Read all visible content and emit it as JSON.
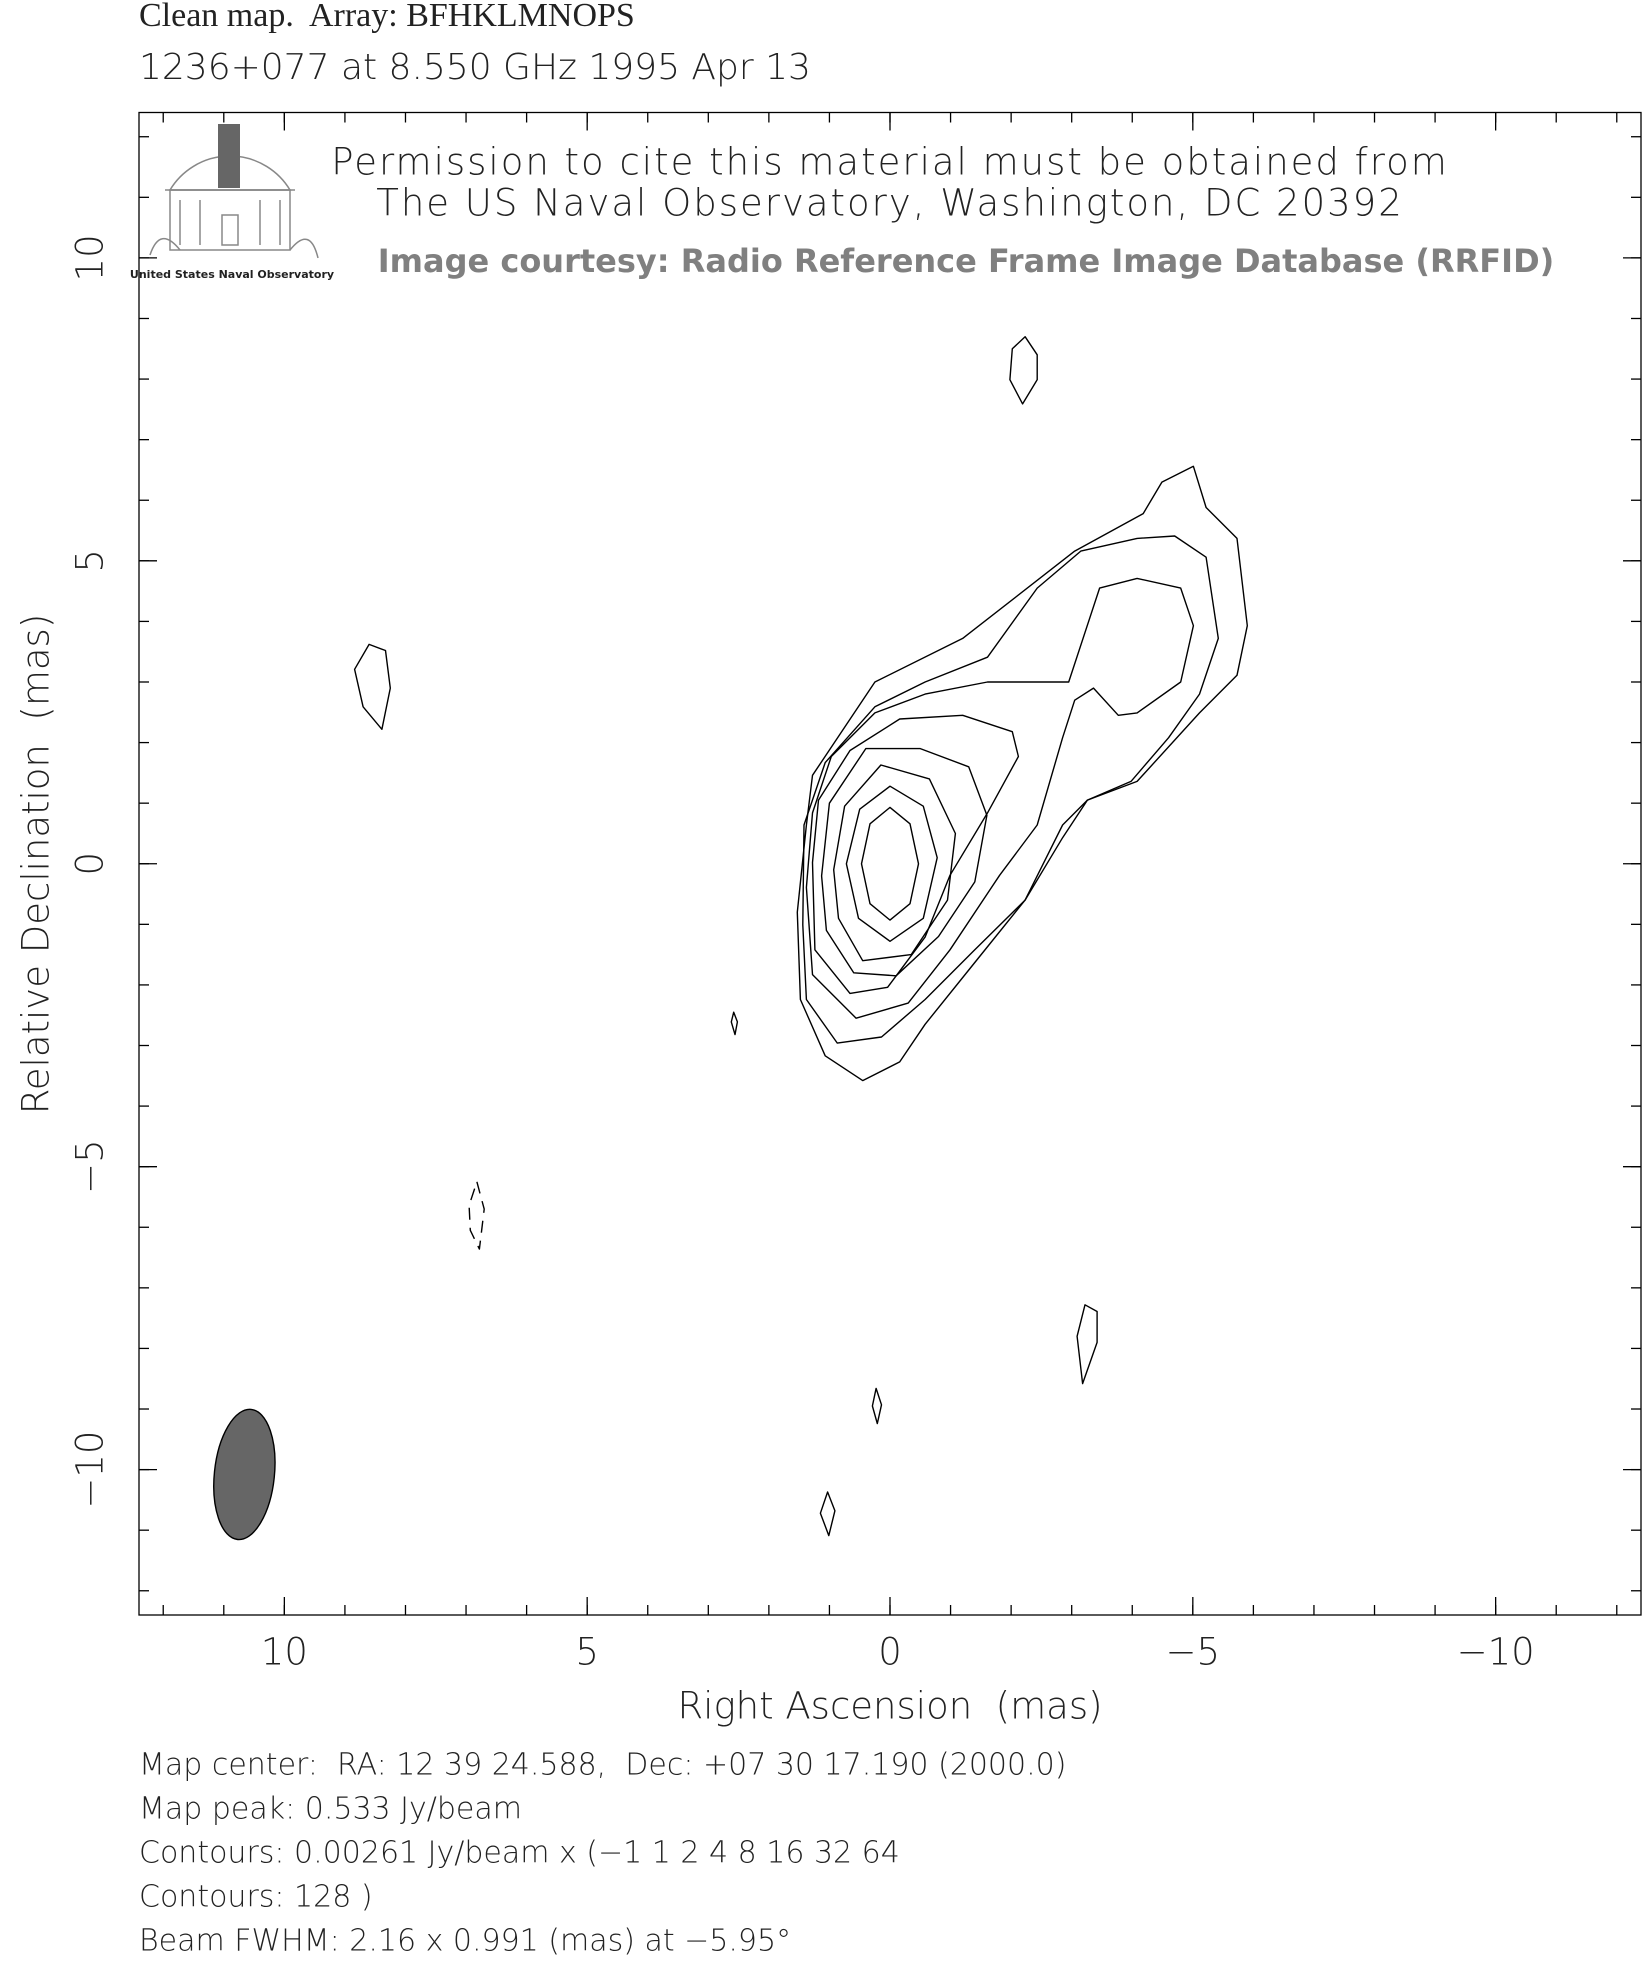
{
  "chart_data": {
    "type": "contour",
    "title": "Clean map.  Array: BFHKLMNOPS",
    "subtitle": "1236+077 at 8.550 GHz 1995 Apr 13",
    "watermark": [
      "Permission to cite this material must be obtained from",
      "The US Naval Observatory, Washington, DC 20392"
    ],
    "courtesy": "Image courtesy: Radio Reference Frame Image Database (RRFID)",
    "logo_caption": "United States Naval Observatory",
    "x_label": "Right Ascension  (mas)",
    "y_label": "Relative Declination  (mas)",
    "xlim": [
      12.4,
      -12.4
    ],
    "ylim": [
      -12.4,
      12.4
    ],
    "xticks": [
      10,
      5,
      0,
      {
        "value": -5,
        "label": "−5"
      },
      {
        "value": -10,
        "label": "−10"
      }
    ],
    "yticks": [
      {
        "value": -10,
        "label": "−10"
      },
      {
        "value": -5,
        "label": "−5"
      },
      0,
      5,
      10
    ],
    "xminor": [
      -12,
      -11,
      -10,
      -9,
      -8,
      -7,
      -6,
      -5,
      -4,
      -3,
      -2,
      -1,
      0,
      1,
      2,
      3,
      4,
      5,
      6,
      7,
      8,
      9,
      10,
      11,
      12
    ],
    "yminor": [
      -12,
      -11,
      -10,
      -9,
      -8,
      -7,
      -6,
      -5,
      -4,
      -3,
      -2,
      -1,
      0,
      1,
      2,
      3,
      4,
      5,
      6,
      7,
      8,
      9,
      10,
      11,
      12
    ],
    "color": "#000000",
    "contours": [
      {
        "level": 128,
        "x": [
          0.47,
          0.33,
          0,
          -0.33,
          -0.47,
          -0.33,
          0,
          0.33
        ],
        "y": [
          0,
          0.66,
          0.93,
          0.66,
          0,
          -0.66,
          -0.93,
          -0.66
        ]
      },
      {
        "level": 64,
        "x": [
          0.72,
          0.5,
          0,
          -0.55,
          -0.78,
          -0.55,
          0,
          0.52
        ],
        "y": [
          0,
          0.9,
          1.28,
          0.95,
          0.1,
          -0.9,
          -1.28,
          -0.9
        ]
      },
      {
        "level": 32,
        "x": [
          0.93,
          0.75,
          0.15,
          -0.65,
          -1.08,
          -0.95,
          -0.35,
          0.45,
          0.85
        ],
        "y": [
          -0.1,
          0.95,
          1.63,
          1.4,
          0.5,
          -0.6,
          -1.5,
          -1.6,
          -0.9
        ]
      },
      {
        "level": 16,
        "x": [
          1.13,
          1.0,
          0.4,
          -0.5,
          -1.3,
          -1.6,
          -1.4,
          -0.8,
          -0.1,
          0.6,
          1.05
        ],
        "y": [
          -0.2,
          1.0,
          1.9,
          1.9,
          1.6,
          0.8,
          -0.3,
          -1.2,
          -1.85,
          -1.8,
          -1.1
        ]
      },
      {
        "level": 8,
        "x": [
          1.28,
          1.18,
          0.66,
          -0.16,
          -1.2,
          -2.02,
          -2.12,
          -1.61,
          -0.99,
          -0.58,
          0.04,
          0.66,
          1.24
        ],
        "y": [
          0.02,
          1.05,
          1.87,
          2.39,
          2.45,
          2.18,
          1.77,
          0.84,
          -0.19,
          -1.21,
          -2.04,
          -2.14,
          -1.42
        ]
      },
      {
        "level": 4,
        "x": [
          -2.95,
          -3.46,
          -4.08,
          -4.8,
          -5.01,
          -4.8,
          -4.08,
          -3.77,
          -3.36,
          -3.05,
          -2.85,
          -2.43,
          -1.81,
          -0.99,
          -0.3,
          0.56,
          1.28,
          1.38,
          1.28,
          0.97,
          0.25,
          -0.58,
          -1.61,
          -2.43
        ],
        "y": [
          3.0,
          4.55,
          4.71,
          4.55,
          3.93,
          3.0,
          2.49,
          2.45,
          2.9,
          2.7,
          2.08,
          0.64,
          -0.19,
          -1.42,
          -2.3,
          -2.55,
          -1.83,
          -0.39,
          0.84,
          1.77,
          2.49,
          2.8,
          3.0,
          3.0
        ]
      },
      {
        "level": 2,
        "x": [
          1.44,
          1.42,
          1.07,
          0.25,
          -0.58,
          -1.61,
          -2.43,
          -3.15,
          -4.08,
          -4.7,
          -5.22,
          -5.42,
          -5.11,
          -4.6,
          -3.98,
          -3.26,
          -2.85,
          -2.23,
          -1.4,
          -0.58,
          0.14,
          0.87,
          1.38
        ],
        "y": [
          -1.01,
          0.64,
          1.67,
          2.59,
          3.0,
          3.41,
          4.55,
          5.16,
          5.37,
          5.41,
          5.06,
          3.72,
          2.8,
          2.08,
          1.36,
          1.05,
          0.43,
          -0.6,
          -1.42,
          -2.24,
          -2.86,
          -2.96,
          -2.24
        ]
      },
      {
        "level": 1,
        "x": [
          1.53,
          1.38,
          1.28,
          0.25,
          -1.2,
          -3.05,
          -4.18,
          -4.49,
          -5.01,
          -5.22,
          -5.73,
          -5.9,
          -5.73,
          -5.11,
          -4.08,
          -3.26,
          -2.85,
          -2.23,
          -1.4,
          -0.58,
          -0.16,
          0.45,
          1.07,
          1.48
        ],
        "y": [
          -0.8,
          0.64,
          1.46,
          3.0,
          3.72,
          5.16,
          5.78,
          6.3,
          6.56,
          5.88,
          5.37,
          3.93,
          3.11,
          2.49,
          1.36,
          1.05,
          0.64,
          -0.6,
          -1.63,
          -2.65,
          -3.27,
          -3.58,
          -3.17,
          -2.24
        ]
      },
      {
        "level": 1,
        "x": [
          -2.23,
          -2.43,
          -2.43,
          -2.19,
          -1.98,
          -2.02
        ],
        "y": [
          8.7,
          8.4,
          7.99,
          7.59,
          7.99,
          8.5
        ]
      },
      {
        "level": 1,
        "x": [
          8.6,
          8.33,
          8.25,
          8.39,
          8.7,
          8.84
        ],
        "y": [
          3.62,
          3.52,
          2.9,
          2.22,
          2.59,
          3.21
        ]
      },
      {
        "level": 1,
        "x": [
          2.58,
          2.52,
          2.56,
          2.62
        ],
        "y": [
          -2.45,
          -2.61,
          -2.82,
          -2.61
        ]
      },
      {
        "level": 1,
        "x": [
          -3.22,
          -3.42,
          -3.42,
          -3.18,
          -3.09
        ],
        "y": [
          -7.28,
          -7.39,
          -7.9,
          -8.58,
          -7.8
        ]
      },
      {
        "level": 1,
        "x": [
          0.23,
          0.14,
          0.21,
          0.29
        ],
        "y": [
          -8.66,
          -8.93,
          -9.24,
          -8.95
        ]
      },
      {
        "level": 1,
        "x": [
          1.03,
          0.91,
          1.01,
          1.15
        ],
        "y": [
          -10.37,
          -10.68,
          -11.09,
          -10.72
        ]
      },
      {
        "level": -1,
        "x": [
          6.82,
          6.7,
          6.78,
          6.93,
          6.95
        ],
        "y": [
          -5.25,
          -5.7,
          -6.36,
          -6.05,
          -5.64
        ]
      }
    ],
    "beam": {
      "x": 10.66,
      "y": -10.08,
      "major": 2.16,
      "minor": 0.991,
      "pa": -5.95,
      "color": "#666666"
    },
    "footer": [
      "Map center:  RA: 12 39 24.588,  Dec: +07 30 17.190 (2000.0)",
      "Map peak: 0.533 Jy/beam",
      "Contours: 0.00261 Jy/beam x (−1 1 2 4 8 16 32 64",
      "Contours: 128 )",
      "Beam FWHM: 2.16 x 0.991 (mas) at −5.95°"
    ]
  }
}
